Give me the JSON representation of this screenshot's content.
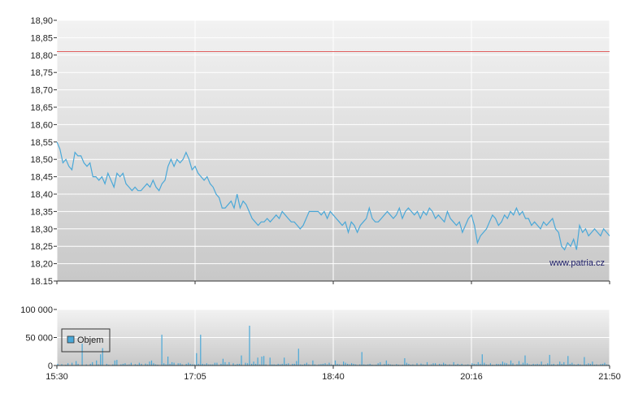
{
  "watermark": "www.patria.cz",
  "colors": {
    "price_line": "#4aa8d8",
    "reference_line": "#e06060",
    "volume_bar": "#4aa8d8",
    "grid": "#ffffff",
    "plot_bg_top": "#f2f2f2",
    "plot_bg_bottom": "#c8c8c8"
  },
  "chart_data": [
    {
      "type": "line",
      "name": "price",
      "ylim": [
        18.15,
        18.9
      ],
      "yticks": [
        "18,90",
        "18,85",
        "18,80",
        "18,75",
        "18,70",
        "18,65",
        "18,60",
        "18,55",
        "18,50",
        "18,45",
        "18,40",
        "18,35",
        "18,30",
        "18,25",
        "18,20",
        "18.15"
      ],
      "reference_value": 18.81,
      "xlim": [
        "15:30",
        "21:50"
      ],
      "xticks": [
        "15:30",
        "17:05",
        "18:40",
        "20:16",
        "21:50"
      ],
      "grid": true,
      "values": [
        18.55,
        18.53,
        18.49,
        18.5,
        18.48,
        18.47,
        18.52,
        18.51,
        18.51,
        18.49,
        18.48,
        18.49,
        18.45,
        18.45,
        18.44,
        18.45,
        18.43,
        18.46,
        18.44,
        18.42,
        18.46,
        18.45,
        18.46,
        18.43,
        18.42,
        18.41,
        18.42,
        18.41,
        18.41,
        18.42,
        18.43,
        18.42,
        18.44,
        18.42,
        18.41,
        18.43,
        18.44,
        18.48,
        18.5,
        18.48,
        18.5,
        18.49,
        18.5,
        18.52,
        18.5,
        18.47,
        18.48,
        18.46,
        18.45,
        18.44,
        18.45,
        18.43,
        18.42,
        18.4,
        18.39,
        18.36,
        18.36,
        18.37,
        18.38,
        18.36,
        18.4,
        18.36,
        18.38,
        18.37,
        18.35,
        18.33,
        18.32,
        18.31,
        18.32,
        18.32,
        18.33,
        18.32,
        18.33,
        18.34,
        18.33,
        18.35,
        18.34,
        18.33,
        18.32,
        18.32,
        18.31,
        18.3,
        18.31,
        18.33,
        18.35,
        18.35,
        18.35,
        18.35,
        18.34,
        18.35,
        18.33,
        18.35,
        18.34,
        18.33,
        18.32,
        18.31,
        18.32,
        18.29,
        18.32,
        18.31,
        18.29,
        18.31,
        18.32,
        18.33,
        18.36,
        18.33,
        18.32,
        18.32,
        18.33,
        18.34,
        18.35,
        18.34,
        18.33,
        18.34,
        18.36,
        18.33,
        18.35,
        18.36,
        18.35,
        18.34,
        18.35,
        18.33,
        18.35,
        18.34,
        18.36,
        18.35,
        18.33,
        18.34,
        18.33,
        18.32,
        18.35,
        18.33,
        18.32,
        18.31,
        18.32,
        18.29,
        18.31,
        18.33,
        18.34,
        18.31,
        18.26,
        18.28,
        18.29,
        18.3,
        18.32,
        18.34,
        18.33,
        18.31,
        18.32,
        18.34,
        18.33,
        18.35,
        18.34,
        18.36,
        18.34,
        18.35,
        18.33,
        18.33,
        18.31,
        18.32,
        18.31,
        18.3,
        18.32,
        18.31,
        18.32,
        18.33,
        18.3,
        18.29,
        18.25,
        18.24,
        18.26,
        18.25,
        18.27,
        18.24,
        18.31,
        18.29,
        18.3,
        18.28,
        18.29,
        18.3,
        18.29,
        18.28,
        18.3,
        18.29,
        18.28
      ]
    },
    {
      "type": "bar",
      "name": "Objem",
      "ylim": [
        0,
        100000
      ],
      "yticks": [
        "100 000",
        "50 000",
        "0"
      ],
      "xticks": [
        "15:30",
        "17:05",
        "18:40",
        "20:16",
        "21:50"
      ],
      "grid": true,
      "legend": {
        "label": "Objem",
        "placement": "top-left"
      },
      "values": [
        3000,
        0,
        2500,
        0,
        1500,
        4000,
        0,
        5000,
        0,
        8000,
        3000,
        0,
        39000,
        0,
        2000,
        0,
        3000,
        6000,
        0,
        9000,
        2000,
        20000,
        31000,
        0,
        3000,
        1500,
        0,
        2000,
        9000,
        10000,
        0,
        2000,
        3000,
        4000,
        1500,
        2000,
        5000,
        0,
        2500,
        1500,
        5000,
        3000,
        0,
        3500,
        2000,
        7000,
        9000,
        4000,
        2000,
        1500,
        0,
        55000,
        4000,
        2000,
        16000,
        3000,
        6000,
        5000,
        1000,
        4000,
        4000,
        2000,
        0,
        3000,
        5000,
        3000,
        2000,
        2000,
        22000,
        3000,
        55000,
        3000,
        2000,
        4000,
        2000,
        2000,
        2000,
        5000,
        5000,
        1000,
        3000,
        12000,
        6000,
        2000,
        6000,
        0,
        4000,
        1500,
        3000,
        3000,
        18000,
        0,
        5000,
        4000,
        71000,
        3000,
        7000,
        3000,
        14000,
        2000,
        16000,
        17000,
        2000,
        0,
        14000,
        2000,
        2000,
        1500,
        3000,
        2000,
        3000,
        14000,
        3000,
        4000,
        1000,
        3000,
        3000,
        8000,
        30000,
        2000,
        1500,
        3000,
        5000,
        2000,
        1000,
        9000,
        2000,
        1000,
        2000,
        2500,
        3000,
        4000,
        2000,
        5000,
        2000,
        1500,
        9000,
        3000,
        2000,
        1000,
        7000,
        5000,
        3000,
        2000,
        4000,
        3000,
        2000,
        1000,
        2000,
        24000,
        2000,
        1500,
        2000,
        3000,
        1500,
        1000,
        1500,
        4000,
        6000,
        1000,
        2500,
        9000,
        3000,
        2000,
        1500,
        1000,
        2500,
        1500,
        1000,
        1500,
        13000,
        5000,
        3000,
        1500,
        2000,
        1000,
        4000,
        1000,
        3500,
        2000,
        1500,
        6000,
        1000,
        2000,
        4000,
        4000,
        1000,
        3000,
        2000,
        5000,
        3000,
        1000,
        2000,
        1000,
        6000,
        1500,
        3000,
        1500,
        3000,
        1000,
        1500,
        2000,
        1000,
        4000,
        3000,
        2500,
        6000,
        3000,
        20000,
        5000,
        2000,
        1500,
        4000,
        1500,
        1000,
        3000,
        2500,
        3000,
        7000,
        5000,
        4000,
        2000,
        9000,
        4000,
        1000,
        2500,
        8000,
        2000,
        5000,
        18000,
        4000,
        2000,
        1500,
        3000,
        2000,
        3000,
        2000,
        7000,
        1500,
        2000,
        4000,
        19000,
        2000,
        3000,
        1000,
        2500,
        7000,
        3000,
        6000,
        1500,
        17000,
        3000,
        5000,
        2000,
        1500,
        3000,
        2000,
        1000,
        15000,
        2000,
        4000,
        3000,
        7000,
        1500,
        2000,
        1000,
        2500,
        3000,
        5000,
        2000,
        1500
      ]
    }
  ]
}
